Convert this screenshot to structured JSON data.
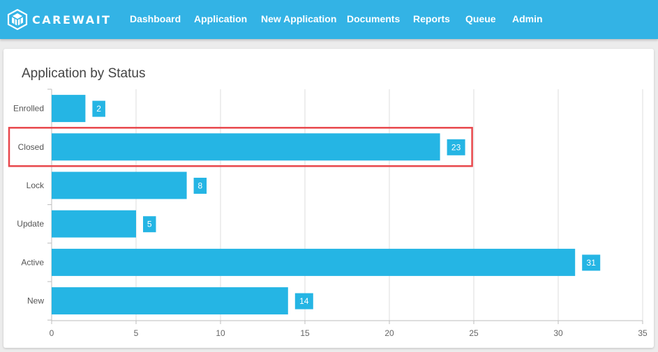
{
  "app": {
    "brand": "CAREWAIT",
    "logo_icon": "cube-logo-icon"
  },
  "nav": {
    "items": [
      {
        "label": "Dashboard"
      },
      {
        "label": "Application"
      },
      {
        "label": "New Application"
      },
      {
        "label": "Documents"
      },
      {
        "label": "Reports"
      },
      {
        "label": "Queue"
      },
      {
        "label": "Admin"
      }
    ]
  },
  "card": {
    "title": "Application by Status"
  },
  "colors": {
    "navbar": "#33b3e5",
    "bar": "#25b5e4",
    "highlight": "#e8474c"
  },
  "chart_data": {
    "type": "bar",
    "orientation": "horizontal",
    "title": "Application by Status",
    "categories": [
      "Enrolled",
      "Closed",
      "Lock",
      "Update",
      "Active",
      "New"
    ],
    "values": [
      2,
      23,
      8,
      5,
      31,
      14
    ],
    "data_labels": [
      "2",
      "23",
      "8",
      "5",
      "31",
      "14"
    ],
    "xlim": [
      0,
      35
    ],
    "xticks": [
      0,
      5,
      10,
      15,
      20,
      25,
      30,
      35
    ],
    "grid": true,
    "highlighted_category": "Closed"
  }
}
